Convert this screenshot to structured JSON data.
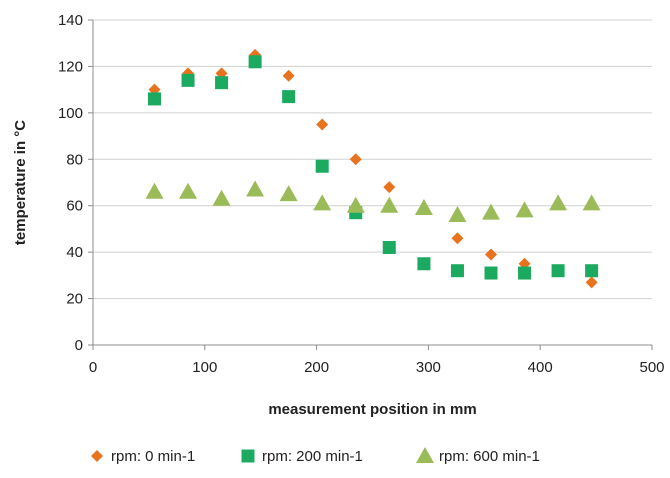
{
  "chart_data": {
    "type": "scatter",
    "title": "",
    "xlabel": "measurement position in mm",
    "ylabel": "temperature in °C",
    "xlim": [
      0,
      500
    ],
    "ylim": [
      0,
      140
    ],
    "xticks": [
      0,
      100,
      200,
      300,
      400,
      500
    ],
    "yticks": [
      0,
      20,
      40,
      60,
      80,
      100,
      120,
      140
    ],
    "grid": "horizontal",
    "legend": "bottom",
    "series": [
      {
        "name": "rpm: 0 min-1",
        "marker": "diamond",
        "color": "#E8731F",
        "x": [
          55,
          85,
          115,
          145,
          175,
          205,
          235,
          265,
          326,
          356,
          386,
          446
        ],
        "y": [
          110,
          117,
          117,
          125,
          116,
          95,
          80,
          68,
          46,
          39,
          35,
          27
        ]
      },
      {
        "name": "rpm: 200 min-1",
        "marker": "square",
        "color": "#1BAA5F",
        "x": [
          55,
          85,
          115,
          145,
          175,
          205,
          235,
          265,
          296,
          326,
          356,
          386,
          416,
          446
        ],
        "y": [
          106,
          114,
          113,
          122,
          107,
          77,
          57,
          42,
          35,
          32,
          31,
          31,
          32,
          32
        ]
      },
      {
        "name": "rpm: 600 min-1",
        "marker": "triangle",
        "color": "#9BBB59",
        "x": [
          55,
          85,
          115,
          145,
          175,
          205,
          235,
          265,
          296,
          326,
          356,
          386,
          416,
          446
        ],
        "y": [
          66,
          66,
          63,
          67,
          65,
          61,
          60,
          60,
          59,
          56,
          57,
          58,
          61,
          61
        ]
      }
    ]
  }
}
